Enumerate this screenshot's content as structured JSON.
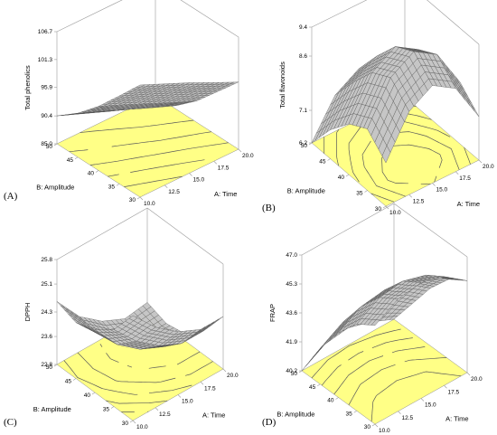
{
  "chart_data": [
    {
      "panel": "(A)",
      "type": "surface3d",
      "zlabel": "Total phenolics",
      "xlabel": "A: Time",
      "ylabel": "B: Amplitude",
      "xticks": [
        "10.0",
        "12.5",
        "15.0",
        "17.5",
        "20.0"
      ],
      "yticks": [
        "30",
        "35",
        "40",
        "45",
        "50"
      ],
      "zticks": [
        "85.0",
        "90.4",
        "95.9",
        "101.3",
        "106.7"
      ],
      "xlim": [
        10,
        20
      ],
      "ylim": [
        30,
        50
      ],
      "zlim": [
        85.0,
        106.7
      ],
      "surface": {
        "x": [
          10,
          12.5,
          15,
          17.5,
          20
        ],
        "y": [
          30,
          35,
          40,
          45,
          50
        ],
        "z": [
          [
            106.7,
            104.6,
            102.5,
            100.2,
            98.0
          ],
          [
            102.0,
            100.0,
            97.9,
            95.8,
            93.6
          ],
          [
            97.4,
            95.4,
            93.3,
            91.2,
            89.2
          ],
          [
            93.5,
            91.6,
            89.6,
            87.6,
            85.7
          ],
          [
            90.4,
            88.5,
            86.6,
            85.0,
            85.0
          ]
        ]
      },
      "floor_color": "#ffff86",
      "surface_color": "#c6c6c6"
    },
    {
      "panel": "(B)",
      "type": "surface3d",
      "zlabel": "Total flavonoids",
      "xlabel": "A: Time",
      "ylabel": "B: Amplitude",
      "xticks": [
        "10.0",
        "12.5",
        "15.0",
        "17.5",
        "20.0"
      ],
      "yticks": [
        "30",
        "35",
        "40",
        "45",
        "50"
      ],
      "zticks": [
        "6.2",
        "7.1",
        "8.6",
        "9.4"
      ],
      "xlim": [
        10,
        20
      ],
      "ylim": [
        30,
        50
      ],
      "zlim": [
        6.2,
        9.4
      ],
      "surface": {
        "x": [
          10,
          12.5,
          15,
          17.5,
          20
        ],
        "y": [
          30,
          35,
          40,
          45,
          50
        ],
        "z": [
          [
            7.4,
            8.5,
            8.9,
            8.5,
            7.4
          ],
          [
            7.9,
            9.0,
            9.4,
            9.0,
            7.9
          ],
          [
            7.6,
            8.7,
            9.1,
            8.7,
            7.6
          ],
          [
            7.0,
            8.0,
            8.4,
            8.0,
            7.0
          ],
          [
            6.2,
            7.2,
            7.6,
            7.2,
            6.3
          ]
        ]
      },
      "floor_color": "#ffff86",
      "surface_color": "#c6c6c6"
    },
    {
      "panel": "(C)",
      "type": "surface3d",
      "zlabel": "DPPH",
      "xlabel": "A: Time",
      "ylabel": "B: Amplitude",
      "xticks": [
        "10.0",
        "12.5",
        "15.0",
        "17.5",
        "20.0"
      ],
      "yticks": [
        "30",
        "35",
        "40",
        "45",
        "50"
      ],
      "zticks": [
        "22.8",
        "23.6",
        "24.3",
        "25.1",
        "25.8"
      ],
      "xlim": [
        10,
        20
      ],
      "ylim": [
        30,
        50
      ],
      "zlim": [
        22.8,
        25.8
      ],
      "surface": {
        "x": [
          10,
          12.5,
          15,
          17.5,
          20
        ],
        "y": [
          30,
          35,
          40,
          45,
          50
        ],
        "z": [
          [
            25.8,
            25.1,
            24.6,
            24.3,
            24.3
          ],
          [
            25.0,
            24.3,
            23.8,
            23.5,
            23.5
          ],
          [
            24.6,
            23.8,
            23.3,
            23.0,
            23.0
          ],
          [
            24.4,
            23.7,
            23.1,
            22.9,
            22.9
          ],
          [
            24.6,
            23.8,
            23.3,
            23.0,
            23.1
          ]
        ]
      },
      "floor_color": "#ffff86",
      "surface_color": "#c6c6c6"
    },
    {
      "panel": "(D)",
      "type": "surface3d",
      "zlabel": "FRAP",
      "xlabel": "A: Time",
      "ylabel": "B: Amplitude",
      "xticks": [
        "10.0",
        "12.5",
        "15.0",
        "17.5",
        "20.0"
      ],
      "yticks": [
        "30",
        "35",
        "40",
        "45",
        "50"
      ],
      "zticks": [
        "40.2",
        "41.9",
        "43.6",
        "45.3",
        "47.0"
      ],
      "xlim": [
        10,
        20
      ],
      "ylim": [
        30,
        50
      ],
      "zlim": [
        40.2,
        47.0
      ],
      "surface": {
        "x": [
          10,
          12.5,
          15,
          17.5,
          20
        ],
        "y": [
          30,
          35,
          40,
          45,
          50
        ],
        "z": [
          [
            46.0,
            46.8,
            47.0,
            46.6,
            45.6
          ],
          [
            45.3,
            46.1,
            46.3,
            45.9,
            44.9
          ],
          [
            44.0,
            44.8,
            45.0,
            44.6,
            43.6
          ],
          [
            42.3,
            43.1,
            43.3,
            42.9,
            41.9
          ],
          [
            40.2,
            41.0,
            41.2,
            40.8,
            40.2
          ]
        ]
      },
      "floor_color": "#ffff86",
      "surface_color": "#c6c6c6"
    }
  ]
}
